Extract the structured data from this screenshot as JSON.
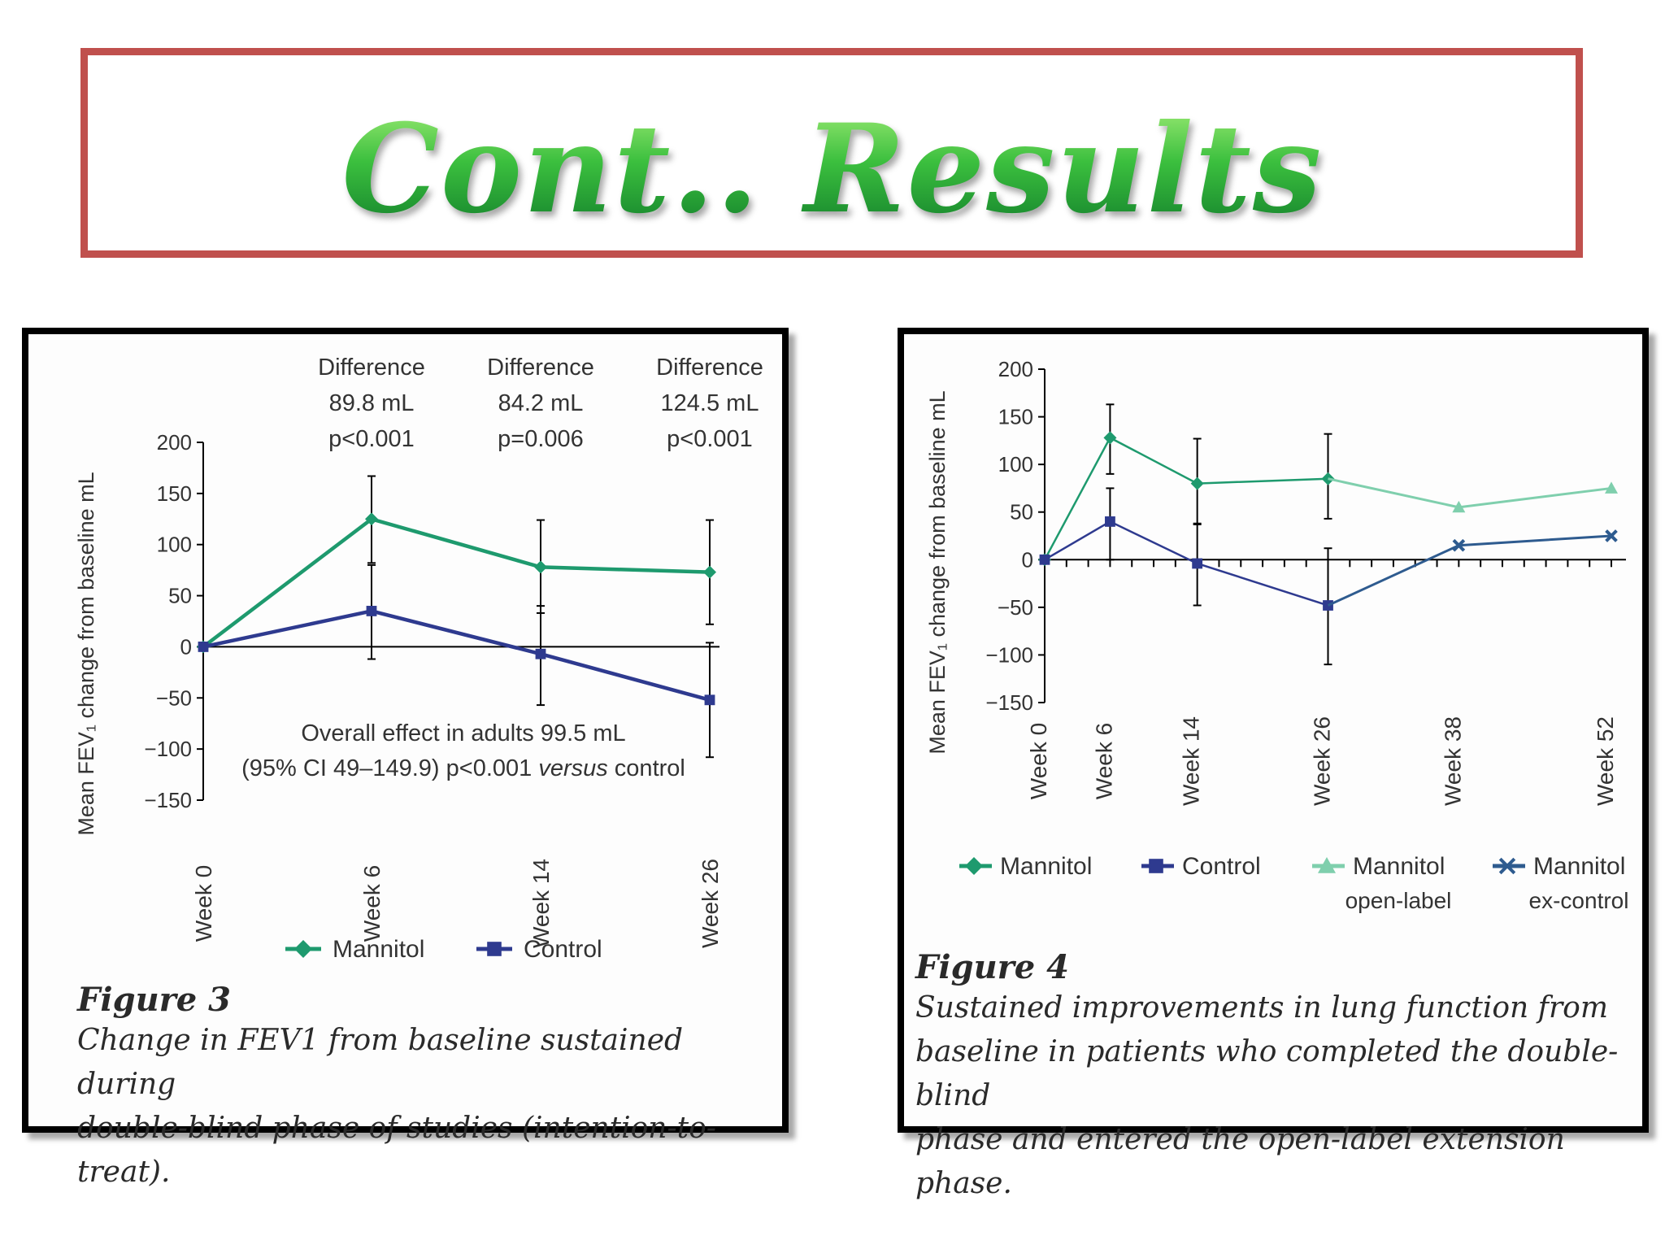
{
  "slide": {
    "title": "Cont.. Results"
  },
  "colors": {
    "title_border": "#c0504d",
    "mannitol": "#1e9a6e",
    "control": "#2e3a8f",
    "open_label": "#7fcfad",
    "ex_control": "#2e5b8f"
  },
  "figure3": {
    "fig_label": "Figure 3",
    "caption_line1": "Change in FEV1 from baseline sustained during",
    "caption_line2": "double-blind phase of studies (intention-to-treat).",
    "overall_line1": "Overall effect in adults 99.5 mL",
    "overall_line2_a": "(95% CI 49–149.9) p<0.001 ",
    "overall_line2_b": "versus",
    "overall_line2_c": " control",
    "differences": [
      {
        "label": "Difference",
        "value": "89.8 mL",
        "p": "p<0.001"
      },
      {
        "label": "Difference",
        "value": "84.2 mL",
        "p": "p=0.006"
      },
      {
        "label": "Difference",
        "value": "124.5 mL",
        "p": "p<0.001"
      }
    ],
    "legend": [
      {
        "name": "Mannitol",
        "marker": "diamond"
      },
      {
        "name": "Control",
        "marker": "square"
      }
    ]
  },
  "figure4": {
    "fig_label": "Figure 4",
    "caption_line1": "Sustained improvements in lung function from",
    "caption_line2": "baseline in patients who completed the double-blind",
    "caption_line3": "phase and entered the open-label extension phase.",
    "legend": [
      {
        "name": "Mannitol",
        "name2": "",
        "marker": "diamond"
      },
      {
        "name": "Control",
        "name2": "",
        "marker": "square"
      },
      {
        "name": "Mannitol",
        "name2": "open-label",
        "marker": "triangle"
      },
      {
        "name": "Mannitol",
        "name2": "ex-control",
        "marker": "cross"
      }
    ]
  },
  "chart_data": [
    {
      "type": "line",
      "title": "Figure 3",
      "xlabel": "",
      "ylabel": "Mean FEV₁ change from baseline mL",
      "categories": [
        "Week 0",
        "Week 6",
        "Week 14",
        "Week 26"
      ],
      "ylim": [
        -150,
        200
      ],
      "yticks": [
        200,
        150,
        100,
        50,
        0,
        -50,
        -100,
        -150
      ],
      "yticklabels": [
        "200",
        "150",
        "100",
        "50",
        "0",
        "−50",
        "−100",
        "−150"
      ],
      "series": [
        {
          "name": "Mannitol",
          "values": [
            0,
            125,
            78,
            73
          ],
          "err_low": [
            0,
            82,
            33,
            22
          ],
          "err_high": [
            0,
            167,
            124,
            124
          ]
        },
        {
          "name": "Control",
          "values": [
            0,
            35,
            -7,
            -52
          ],
          "err_low": [
            0,
            -12,
            -57,
            -108
          ],
          "err_high": [
            0,
            80,
            40,
            4
          ]
        }
      ]
    },
    {
      "type": "line",
      "title": "Figure 4",
      "xlabel": "",
      "ylabel": "Mean FEV₁ change from baseline mL",
      "categories": [
        "Week 0",
        "Week 6",
        "Week 14",
        "Week 26",
        "Week 38",
        "Week 52"
      ],
      "x": [
        0,
        6,
        14,
        26,
        38,
        52
      ],
      "ylim": [
        -150,
        200
      ],
      "yticks": [
        200,
        150,
        100,
        50,
        0,
        -50,
        -100,
        -150
      ],
      "yticklabels": [
        "200",
        "150",
        "100",
        "50",
        "0",
        "−50",
        "−100",
        "−150"
      ],
      "series": [
        {
          "name": "Mannitol",
          "x": [
            0,
            6,
            14,
            26
          ],
          "values": [
            0,
            128,
            80,
            85
          ],
          "err_low": [
            0,
            90,
            38,
            43
          ],
          "err_high": [
            0,
            163,
            127,
            132
          ]
        },
        {
          "name": "Control",
          "x": [
            0,
            6,
            14,
            26
          ],
          "values": [
            0,
            40,
            -4,
            -48
          ],
          "err_low": [
            0,
            0,
            -48,
            -110
          ],
          "err_high": [
            0,
            75,
            37,
            12
          ]
        },
        {
          "name": "Mannitol open-label",
          "x": [
            26,
            38,
            52
          ],
          "values": [
            85,
            55,
            75
          ]
        },
        {
          "name": "Mannitol ex-control",
          "x": [
            26,
            38,
            52
          ],
          "values": [
            -48,
            15,
            25
          ]
        }
      ]
    }
  ]
}
